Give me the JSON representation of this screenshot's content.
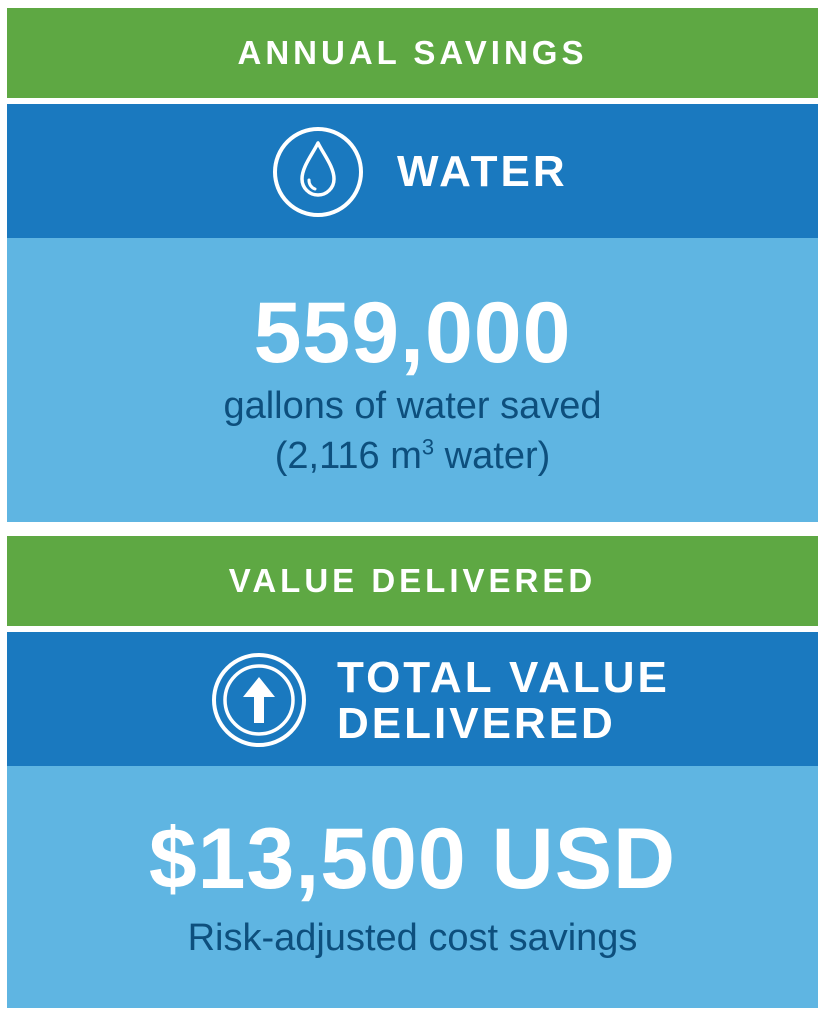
{
  "annual_savings": {
    "header": "ANNUAL SAVINGS",
    "category": {
      "icon": "water-drop-icon",
      "title": "WATER"
    },
    "value": "559,000",
    "desc_line1": "gallons of water saved",
    "desc_line2_prefix": "(2,116 m",
    "desc_line2_sup": "3",
    "desc_line2_suffix": " water)"
  },
  "value_delivered": {
    "header": "VALUE DELIVERED",
    "category": {
      "icon": "arrow-up-icon",
      "title_line1": "TOTAL VALUE",
      "title_line2": "DELIVERED"
    },
    "value": "$13,500 USD",
    "desc": "Risk-adjusted cost savings"
  },
  "colors": {
    "green": "#5ea843",
    "blue": "#1a79bf",
    "light_blue": "#5fb5e2",
    "dark_text": "#0d4f7d"
  }
}
